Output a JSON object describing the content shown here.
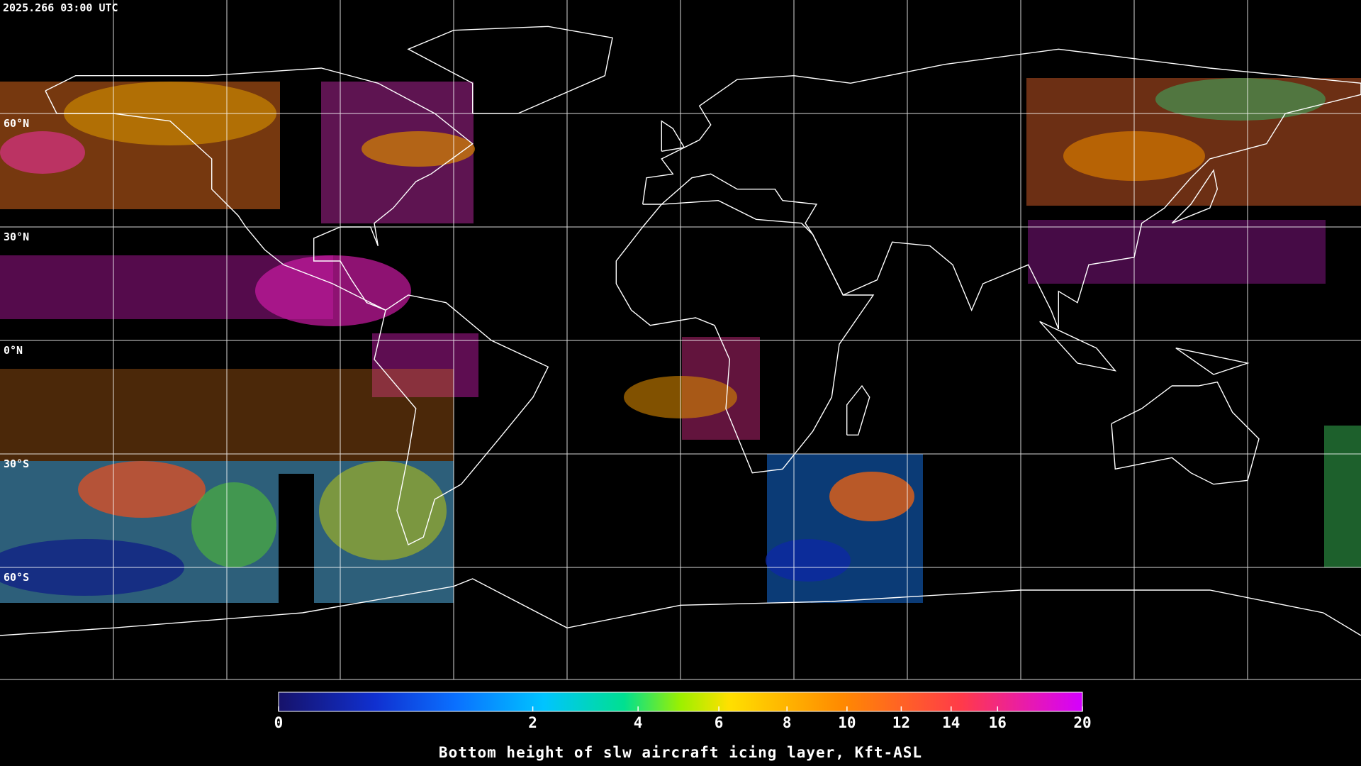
{
  "header": {
    "timestamp": "2025.266 03:00 UTC"
  },
  "map": {
    "latitude_labels": [
      "60°N",
      "30°N",
      "0°N",
      "30°S",
      "60°S"
    ]
  },
  "colorbar": {
    "label": "Bottom height of slw aircraft icing layer, Kft-ASL",
    "range": [
      0,
      20
    ],
    "ticks": [
      0,
      2,
      4,
      6,
      8,
      10,
      12,
      14,
      16,
      20
    ],
    "scale": "sqrt"
  }
}
